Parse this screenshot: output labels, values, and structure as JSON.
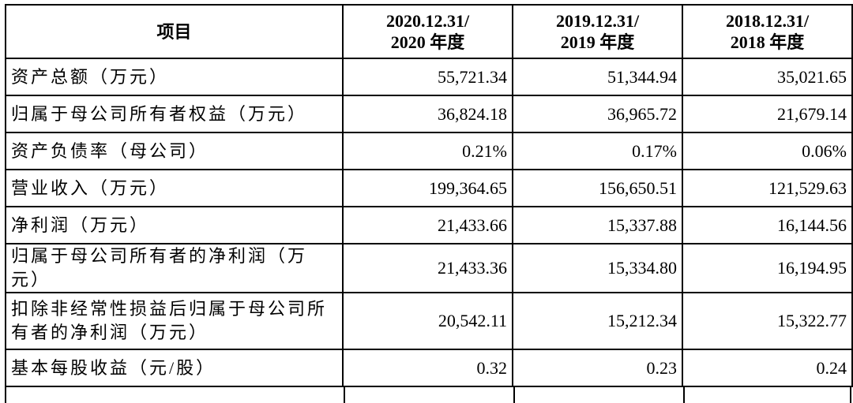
{
  "table": {
    "header": [
      [
        "项目"
      ],
      [
        "2020.12.31/",
        "2020 年度"
      ],
      [
        "2019.12.31/",
        "2019 年度"
      ],
      [
        "2018.12.31/",
        "2018 年度"
      ]
    ],
    "rows": [
      [
        "资产总额（万元）",
        "55,721.34",
        "51,344.94",
        "35,021.65"
      ],
      [
        "归属于母公司所有者权益（万元）",
        "36,824.18",
        "36,965.72",
        "21,679.14"
      ],
      [
        "资产负债率（母公司）",
        "0.21%",
        "0.17%",
        "0.06%"
      ],
      [
        "营业收入（万元）",
        "199,364.65",
        "156,650.51",
        "121,529.63"
      ],
      [
        "净利润（万元）",
        "21,433.66",
        "15,337.88",
        "16,144.56"
      ],
      [
        "归属于母公司所有者的净利润（万元）",
        "21,433.36",
        "15,334.80",
        "16,194.95"
      ],
      [
        "扣除非经常性损益后归属于母公司所有者的净利润（万元）",
        "20,542.11",
        "15,212.34",
        "15,322.77"
      ],
      [
        "基本每股收益（元/股）",
        "0.32",
        "0.23",
        "0.24"
      ]
    ]
  }
}
